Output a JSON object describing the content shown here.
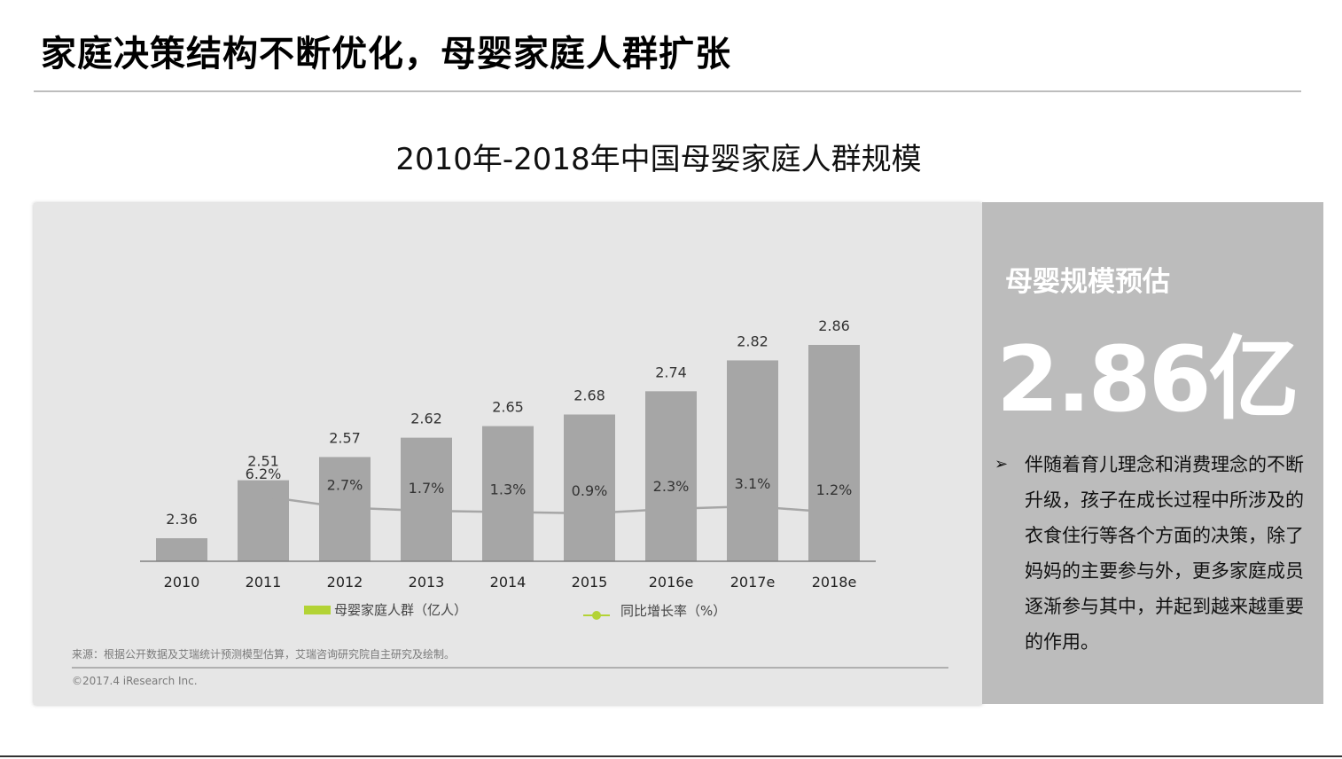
{
  "page_title": "家庭决策结构不断优化，母婴家庭人群扩张",
  "chart_title": "2010年-2018年中国母婴家庭人群规模",
  "chart_data": {
    "type": "bar",
    "categories": [
      "2010",
      "2011",
      "2012",
      "2013",
      "2014",
      "2015",
      "2016e",
      "2017e",
      "2018e"
    ],
    "series": [
      {
        "name": "母婴家庭人群（亿人）",
        "type": "bar",
        "values": [
          2.36,
          2.51,
          2.57,
          2.62,
          2.65,
          2.68,
          2.74,
          2.82,
          2.86
        ],
        "labels": [
          "2.36",
          "2.51",
          "2.57",
          "2.62",
          "2.65",
          "2.68",
          "2.74",
          "2.82",
          "2.86"
        ],
        "color": "#a6a6a6"
      },
      {
        "name": "同比增长率（%）",
        "type": "line",
        "values": [
          null,
          6.2,
          2.7,
          1.7,
          1.3,
          0.9,
          2.3,
          3.1,
          1.2
        ],
        "labels": [
          null,
          "6.2%",
          "2.7%",
          "1.7%",
          "1.3%",
          "0.9%",
          "2.3%",
          "3.1%",
          "1.2%"
        ],
        "color": "#a6a6a6",
        "legend_color": "#b3d335"
      }
    ],
    "legend_placement": "bottom",
    "grid": false
  },
  "source_note": "来源：根据公开数据及艾瑞统计预测模型估算，艾瑞咨询研究院自主研究及绘制。",
  "copyright": "©2017.4 iResearch Inc.",
  "side": {
    "heading": "母婴规模预估",
    "big_value": "2.86亿",
    "bullet_icon": "arrow-bullet-icon",
    "bullet": "伴随着育儿理念和消费理念的不断升级，孩子在成长过程中所涉及的衣食住行等各个方面的决策，除了妈妈的主要参与外，更多家庭成员逐渐参与其中，并起到越来越重要的作用。"
  }
}
